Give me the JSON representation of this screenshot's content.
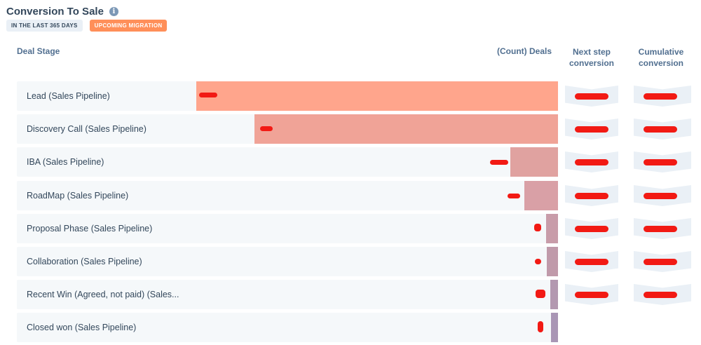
{
  "header": {
    "title": "Conversion To Sale",
    "tags": {
      "date_range": "IN THE LAST 365 DAYS",
      "migration": "UPCOMING MIGRATION"
    }
  },
  "columns": {
    "stage": "Deal Stage",
    "deals": "(Count) Deals",
    "next_step": "Next step conversion",
    "cumulative": "Cumulative conversion"
  },
  "colors": {
    "bar_lead": "#ffa58c",
    "bar_discovery": "#f0a397",
    "bar_iba": "#e0a2a0",
    "bar_roadmap": "#d9a0a6",
    "bar_proposal": "#c89ca9",
    "bar_collab": "#c09aaa",
    "bar_win": "#b398b0",
    "bar_closed": "#a996b5",
    "redaction": "#f21a14"
  },
  "stages": [
    {
      "label": "Lead (Sales Pipeline)"
    },
    {
      "label": "Discovery Call (Sales Pipeline)"
    },
    {
      "label": "IBA (Sales Pipeline)"
    },
    {
      "label": "RoadMap (Sales Pipeline)"
    },
    {
      "label": "Proposal Phase (Sales Pipeline)"
    },
    {
      "label": "Collaboration (Sales Pipeline)"
    },
    {
      "label": "Recent Win (Agreed, not paid) (Sales..."
    },
    {
      "label": "Closed won (Sales Pipeline)"
    }
  ]
}
